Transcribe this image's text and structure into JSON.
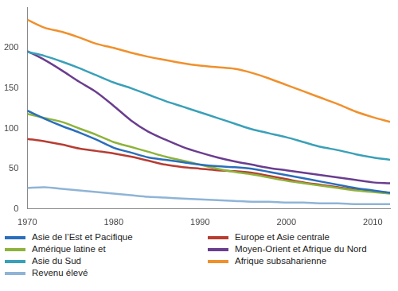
{
  "chart_data": {
    "type": "line",
    "x": [
      1970,
      1972,
      1974,
      1976,
      1978,
      1980,
      1982,
      1984,
      1986,
      1988,
      1990,
      1992,
      1994,
      1996,
      1998,
      2000,
      2002,
      2004,
      2006,
      2008,
      2010,
      2012
    ],
    "series": [
      {
        "name": "Asie de l’Est et Pacifique",
        "color": "#2a6ebb",
        "values": [
          122,
          112,
          103,
          95,
          86,
          76,
          70,
          64,
          61,
          58,
          55,
          53,
          52,
          50,
          46,
          42,
          38,
          34,
          30,
          26,
          23,
          20
        ]
      },
      {
        "name": "Amérique latine et",
        "color": "#8db33c",
        "values": [
          118,
          113,
          108,
          100,
          92,
          83,
          77,
          71,
          65,
          60,
          55,
          50,
          46,
          43,
          39,
          35,
          32,
          29,
          26,
          23,
          21,
          19
        ]
      },
      {
        "name": "Asie du Sud",
        "color": "#3aa0b8",
        "values": [
          195,
          190,
          183,
          175,
          166,
          157,
          150,
          142,
          134,
          127,
          120,
          113,
          106,
          99,
          94,
          89,
          83,
          77,
          73,
          68,
          64,
          61
        ]
      },
      {
        "name": "Revenu élevé",
        "color": "#8fb4d6",
        "values": [
          26,
          27,
          25,
          23,
          21,
          19,
          17,
          15,
          14,
          13,
          12,
          11,
          10,
          9,
          9,
          8,
          8,
          7,
          7,
          6,
          6,
          6
        ]
      },
      {
        "name": "Europe et Asie centrale",
        "color": "#b83c32",
        "values": [
          87,
          84,
          80,
          75,
          72,
          69,
          65,
          60,
          55,
          52,
          50,
          48,
          47,
          45,
          41,
          37,
          33,
          30,
          27,
          24,
          22,
          20
        ]
      },
      {
        "name": "Moyen-Orient et Afrique du Nord",
        "color": "#6a3d8f",
        "values": [
          196,
          185,
          172,
          158,
          145,
          128,
          110,
          96,
          86,
          77,
          70,
          64,
          59,
          55,
          51,
          48,
          45,
          42,
          39,
          36,
          33,
          32
        ]
      },
      {
        "name": "Afrique subsaharienne",
        "color": "#f0902c",
        "values": [
          235,
          225,
          220,
          213,
          205,
          200,
          194,
          189,
          185,
          181,
          178,
          176,
          174,
          169,
          162,
          154,
          146,
          138,
          130,
          121,
          114,
          108
        ]
      }
    ],
    "xlim": [
      1970,
      2012
    ],
    "xticks": [
      1970,
      1980,
      1990,
      2000,
      2010
    ],
    "ylim": [
      0,
      250
    ],
    "yticks": [
      0,
      50,
      100,
      150,
      200
    ],
    "grid": false,
    "legend": "bottom"
  }
}
